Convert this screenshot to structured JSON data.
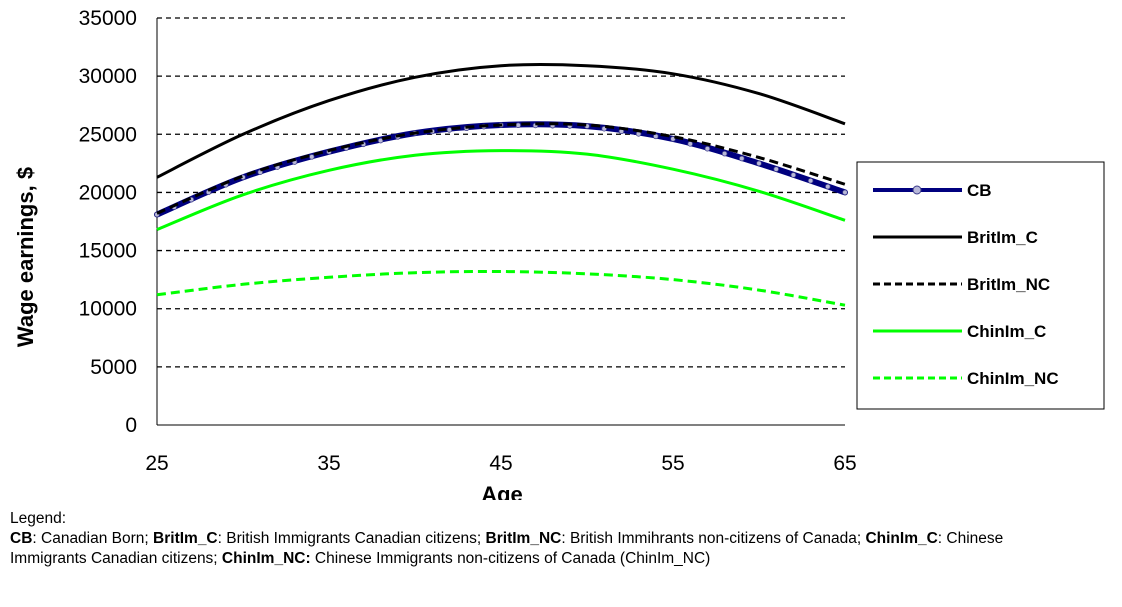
{
  "chart_data": {
    "type": "line",
    "xlabel": "Age",
    "ylabel": "Wage earnings, $",
    "xlim": [
      25,
      65
    ],
    "ylim": [
      0,
      35000
    ],
    "x_ticks": [
      25,
      35,
      45,
      55,
      65
    ],
    "y_ticks": [
      0,
      5000,
      10000,
      15000,
      20000,
      25000,
      30000,
      35000
    ],
    "grid": "horizontal dashed",
    "legend_position": "right",
    "x": [
      25,
      30,
      35,
      40,
      45,
      50,
      55,
      60,
      65
    ],
    "series": [
      {
        "name": "CB",
        "style": "solid-markers",
        "color": "#00007f",
        "values": [
          18100,
          21300,
          23500,
          25100,
          25800,
          25700,
          24600,
          22500,
          20000
        ]
      },
      {
        "name": "BritIm_C",
        "style": "solid",
        "color": "#000000",
        "values": [
          21300,
          25000,
          27900,
          29900,
          30900,
          30900,
          30200,
          28500,
          25900
        ]
      },
      {
        "name": "BritIm_NC",
        "style": "dashed",
        "color": "#000000",
        "values": [
          18200,
          21400,
          23600,
          25100,
          25800,
          25800,
          24800,
          23000,
          20700
        ]
      },
      {
        "name": "ChinIm_C",
        "style": "solid",
        "color": "#00ff00",
        "values": [
          16800,
          19800,
          21900,
          23200,
          23600,
          23300,
          22000,
          20100,
          17600
        ]
      },
      {
        "name": "ChinIm_NC",
        "style": "dashed",
        "color": "#00ff00",
        "values": [
          11200,
          12100,
          12700,
          13100,
          13200,
          13000,
          12500,
          11600,
          10300
        ]
      }
    ]
  },
  "caption": {
    "heading": "Legend:",
    "p1_b": "CB",
    "p1_t": ": Canadian Born; ",
    "p2_b": "BritIm_C",
    "p2_t": ": British Immigrants Canadian citizens; ",
    "p3_b": "BritIm_NC",
    "p3_t": ": British Immihrants non-citizens of Canada; ",
    "p4_b": "ChinIm_C",
    "p4_t": ": Chinese Immigrants Canadian citizens; ",
    "p5_b": "ChinIm_NC:",
    "p5_t": " Chinese Immigrants non-citizens of Canada (ChinIm_NC)"
  }
}
